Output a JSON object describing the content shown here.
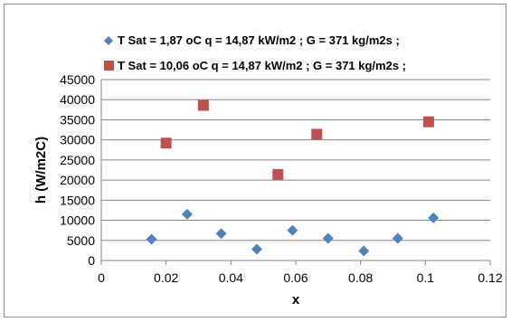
{
  "chart_data": {
    "type": "scatter",
    "xlabel": "x",
    "ylabel": "h (W/m2C)",
    "xlim": [
      0,
      0.12
    ],
    "ylim": [
      0,
      45000
    ],
    "x_ticks": [
      "0",
      "0.02",
      "0.04",
      "0.06",
      "0.08",
      "0.1",
      "0.12"
    ],
    "y_ticks": [
      "0",
      "5000",
      "10000",
      "15000",
      "20000",
      "25000",
      "30000",
      "35000",
      "40000",
      "45000"
    ],
    "grid": "horizontal",
    "legend_position": "top",
    "series": [
      {
        "name": "T Sat = 1,87 oC q = 14,87 kW/m2 ; G = 371 kg/m2s ;",
        "marker": "diamond",
        "color": "#4F81BD",
        "points": [
          {
            "x": 0.0155,
            "y": 5300
          },
          {
            "x": 0.0265,
            "y": 11500
          },
          {
            "x": 0.037,
            "y": 6700
          },
          {
            "x": 0.048,
            "y": 2800
          },
          {
            "x": 0.059,
            "y": 7500
          },
          {
            "x": 0.07,
            "y": 5500
          },
          {
            "x": 0.081,
            "y": 2400
          },
          {
            "x": 0.0915,
            "y": 5500
          },
          {
            "x": 0.1025,
            "y": 10600
          }
        ]
      },
      {
        "name": "T Sat = 10,06 oC q = 14,87 kW/m2 ; G = 371 kg/m2s ;",
        "marker": "square",
        "color": "#C0504D",
        "points": [
          {
            "x": 0.02,
            "y": 29200
          },
          {
            "x": 0.0315,
            "y": 38600
          },
          {
            "x": 0.0545,
            "y": 21400
          },
          {
            "x": 0.0665,
            "y": 31400
          },
          {
            "x": 0.101,
            "y": 34500
          }
        ]
      }
    ]
  }
}
